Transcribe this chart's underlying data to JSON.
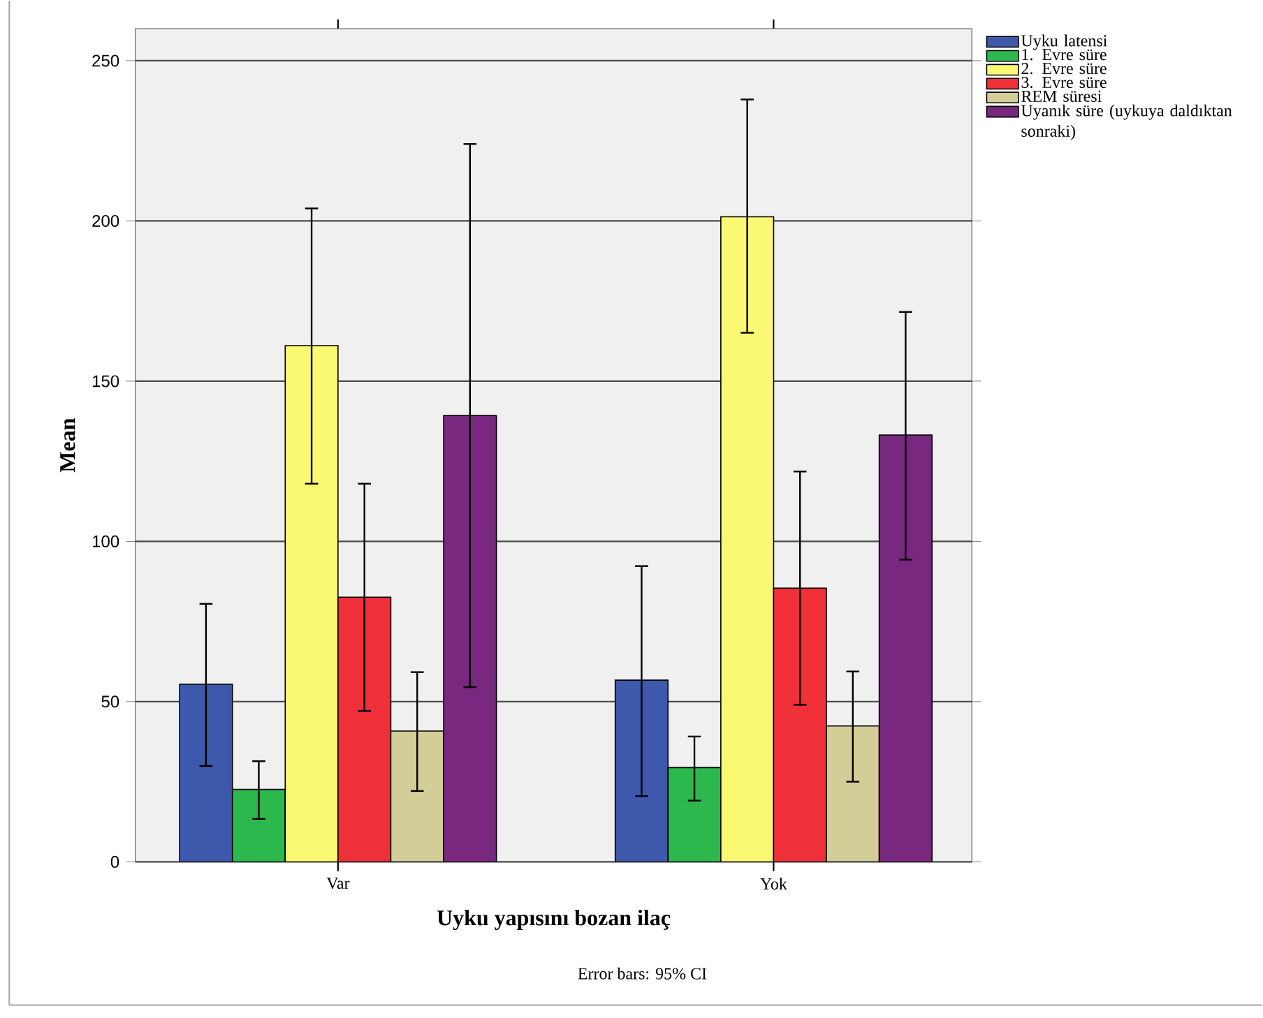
{
  "chart_data": {
    "type": "bar",
    "xlabel": "Uyku yapısını bozan ilaç",
    "ylabel": "Mean",
    "categories": [
      "Var",
      "Yok"
    ],
    "series": [
      {
        "name": "Uyku latensi",
        "color": "#3e58ac",
        "values": [
          55.4,
          56.7
        ],
        "errors": [
          [
            29.9,
            80.5
          ],
          [
            20.5,
            92.3
          ]
        ]
      },
      {
        "name": "1. Evre süre",
        "color": "#2db84d",
        "values": [
          22.6,
          29.4
        ],
        "errors": [
          [
            13.4,
            31.4
          ],
          [
            19.1,
            39.1
          ]
        ]
      },
      {
        "name": "2. Evre süre",
        "color": "#fbf873",
        "values": [
          161.1,
          201.3
        ],
        "errors": [
          [
            118.0,
            203.9
          ],
          [
            165.1,
            237.9
          ]
        ]
      },
      {
        "name": "3. Evre süre",
        "color": "#ef3038",
        "values": [
          82.6,
          85.4
        ],
        "errors": [
          [
            47.1,
            118.0
          ],
          [
            49.0,
            121.8
          ]
        ]
      },
      {
        "name": "REM süresi",
        "color": "#d3ce97",
        "values": [
          40.8,
          42.4
        ],
        "errors": [
          [
            22.1,
            59.2
          ],
          [
            25.0,
            59.4
          ]
        ]
      },
      {
        "name": "Uyanık süre (uykuya daldıktan sonraki)",
        "color": "#79287f",
        "values": [
          139.3,
          133.2
        ],
        "errors": [
          [
            54.5,
            224.0
          ],
          [
            94.3,
            171.6
          ]
        ]
      }
    ],
    "ylim": [
      0,
      260
    ],
    "yticks": [
      0,
      50,
      100,
      150,
      200,
      250
    ],
    "grid": "y",
    "legend": "top right",
    "annotations": [
      "Error bars: 95% CI"
    ]
  }
}
